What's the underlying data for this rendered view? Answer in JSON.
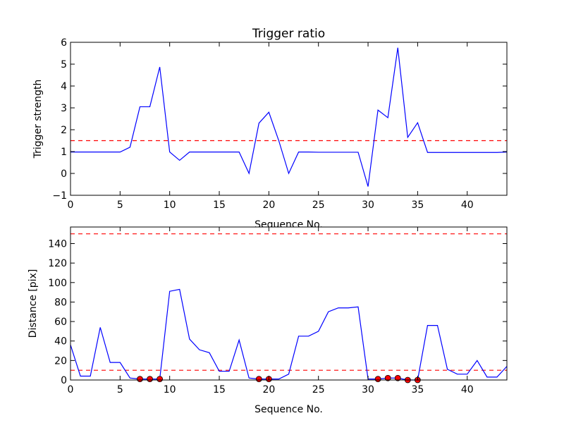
{
  "chart_data": [
    {
      "type": "line",
      "title": "Trigger ratio",
      "xlabel": "Sequence No.",
      "ylabel": "Trigger strength",
      "xlim": [
        0,
        44
      ],
      "ylim": [
        -1,
        6
      ],
      "xticks": [
        "0",
        "5",
        "10",
        "15",
        "20",
        "25",
        "30",
        "35",
        "40"
      ],
      "yticks": [
        "−1",
        "0",
        "1",
        "2",
        "3",
        "4",
        "5",
        "6"
      ],
      "threshold": 1.5,
      "threshold_color": "#ff0000",
      "line_color": "#0000ff",
      "series": [
        {
          "x": [
            0,
            1,
            2,
            3,
            4,
            5,
            6,
            7,
            8,
            9,
            10,
            11,
            12,
            13,
            14,
            15,
            16,
            17,
            18,
            19,
            20,
            21,
            22,
            23,
            24,
            25,
            26,
            27,
            28,
            29,
            30,
            31,
            32,
            33,
            34,
            35,
            36,
            37,
            38,
            39,
            40,
            41,
            42,
            43,
            44
          ],
          "values": [
            0.98,
            0.98,
            0.98,
            0.98,
            0.98,
            0.98,
            1.2,
            3.05,
            3.05,
            4.87,
            0.98,
            0.6,
            0.98,
            0.98,
            0.98,
            0.98,
            0.98,
            0.98,
            0.0,
            2.3,
            2.8,
            1.5,
            0.0,
            0.98,
            0.98,
            0.97,
            0.97,
            0.97,
            0.97,
            0.97,
            -0.6,
            2.9,
            2.55,
            5.75,
            1.65,
            2.32,
            0.96,
            0.96,
            0.96,
            0.96,
            0.96,
            0.96,
            0.96,
            0.96,
            0.98
          ]
        }
      ]
    },
    {
      "type": "line",
      "xlabel": "Sequence No.",
      "ylabel": "Distance [pix]",
      "xlim": [
        0,
        44
      ],
      "ylim": [
        0,
        157
      ],
      "xticks": [
        "0",
        "5",
        "10",
        "15",
        "20",
        "25",
        "30",
        "35",
        "40"
      ],
      "yticks": [
        "0",
        "20",
        "40",
        "60",
        "80",
        "100",
        "120",
        "140"
      ],
      "thresholds": [
        10,
        150
      ],
      "threshold_color": "#ff0000",
      "line_color": "#0000ff",
      "marker_color": "#ff0000",
      "series": [
        {
          "x": [
            0,
            1,
            2,
            3,
            4,
            5,
            6,
            7,
            8,
            9,
            10,
            11,
            12,
            13,
            14,
            15,
            16,
            17,
            18,
            19,
            20,
            21,
            22,
            23,
            24,
            25,
            26,
            27,
            28,
            29,
            30,
            31,
            32,
            33,
            34,
            35,
            36,
            37,
            38,
            39,
            40,
            41,
            42,
            43,
            44
          ],
          "values": [
            36,
            4,
            4,
            54,
            18,
            18,
            2,
            1,
            1,
            1,
            91,
            93,
            42,
            31,
            28,
            9,
            9,
            41,
            2,
            1,
            1,
            1,
            6,
            45,
            45,
            50,
            70,
            74,
            74,
            75,
            1,
            1,
            2,
            2,
            0,
            0,
            56,
            56,
            11,
            6,
            6,
            20,
            3,
            3,
            14
          ]
        }
      ],
      "markers": {
        "x": [
          7,
          8,
          9,
          19,
          20,
          31,
          32,
          33,
          34,
          35
        ],
        "values": [
          1,
          1,
          1,
          1,
          1,
          1,
          2,
          2,
          0,
          0
        ]
      }
    }
  ]
}
